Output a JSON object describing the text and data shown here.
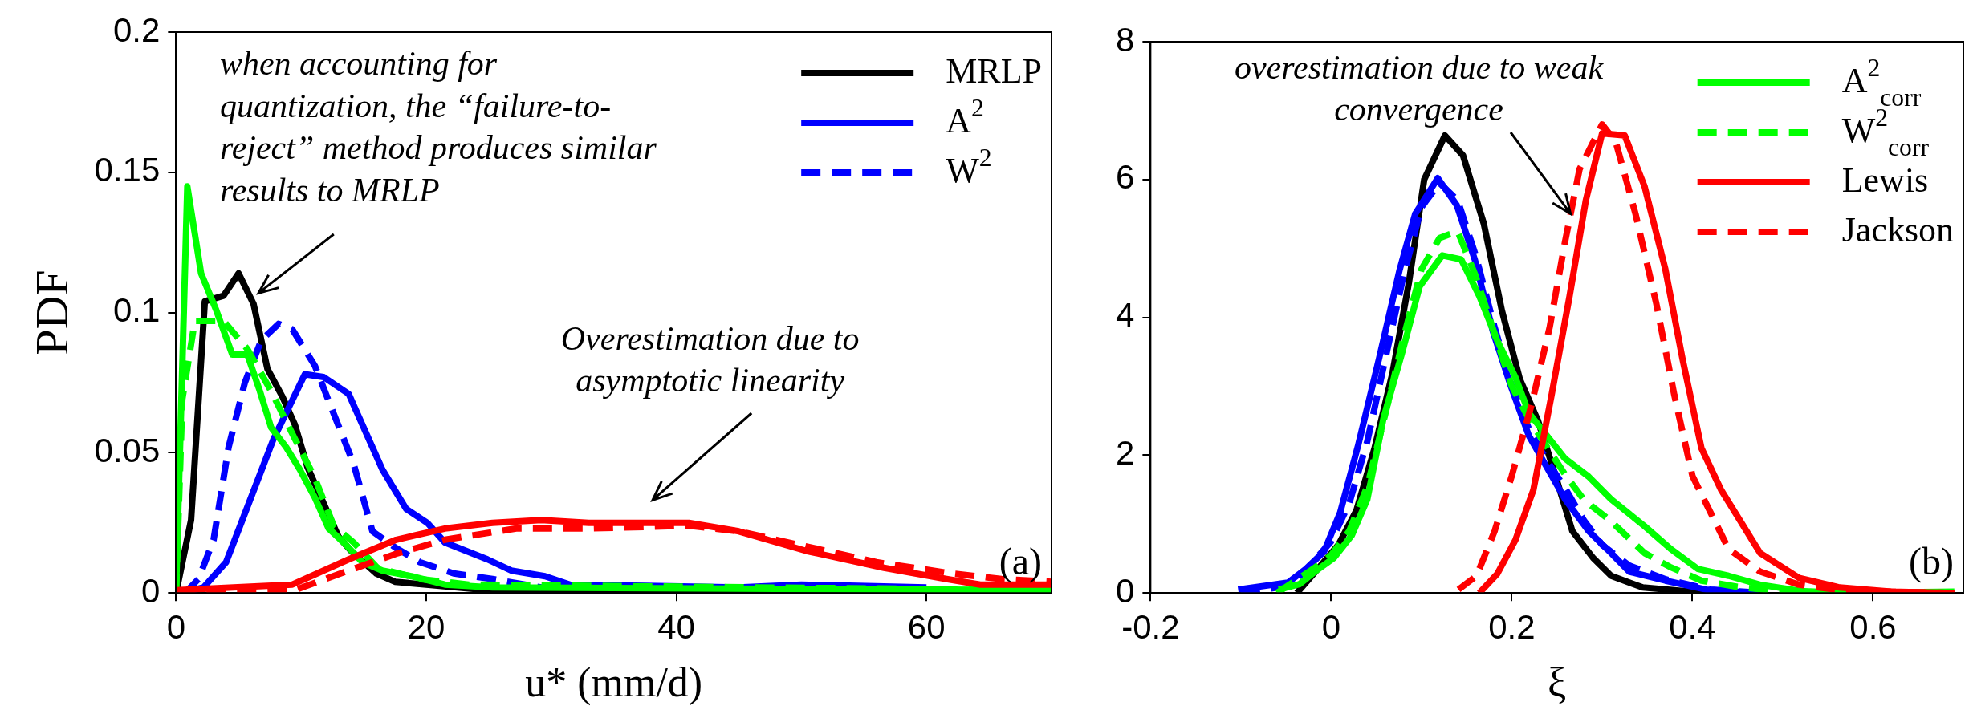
{
  "chart_data": [
    {
      "type": "line",
      "xlabel": "u* (mm/d)",
      "ylabel": "PDF",
      "xlim": [
        0,
        70
      ],
      "ylim": [
        0,
        0.2
      ],
      "xticks": [
        0,
        20,
        40,
        60
      ],
      "yticks": [
        0,
        0.05,
        0.1,
        0.15,
        0.2
      ],
      "grid": false,
      "legend": "top right",
      "series": [
        {
          "name": "MRLP",
          "color": "#000000",
          "line_style": "solid",
          "x": [
            0,
            1.2,
            2.3,
            3.8,
            5,
            6.2,
            7.3,
            8.5,
            9.5,
            10.5,
            12,
            13,
            14,
            16,
            17.5,
            20,
            25,
            30,
            70
          ],
          "values": [
            0,
            0.026,
            0.104,
            0.106,
            0.114,
            0.103,
            0.08,
            0.07,
            0.06,
            0.045,
            0.03,
            0.02,
            0.015,
            0.007,
            0.004,
            0.003,
            0.001,
            0,
            0
          ]
        },
        {
          "name": "A$^{2}$",
          "color": "#0000ff",
          "line_style": "solid",
          "x": [
            0.5,
            2.2,
            4,
            5.3,
            7.8,
            10.3,
            11.8,
            13.8,
            16.5,
            18.4,
            20.1,
            21.5,
            24.9,
            26.8,
            29.5,
            31.5,
            45,
            50,
            60
          ],
          "values": [
            0,
            0.002,
            0.011,
            0.026,
            0.055,
            0.078,
            0.077,
            0.071,
            0.044,
            0.03,
            0.025,
            0.018,
            0.012,
            0.008,
            0.006,
            0.003,
            0.002,
            0.003,
            0.002
          ]
        },
        {
          "name": "W$^{2}$",
          "color": "#0000ff",
          "line_style": "dashed",
          "x": [
            0.7,
            1.8,
            3,
            4.2,
            5.5,
            6.8,
            8.2,
            9.3,
            11.1,
            12.6,
            14.2,
            15.7,
            17.6,
            19.5,
            22.2,
            25.3,
            29.2
          ],
          "values": [
            0,
            0.005,
            0.019,
            0.052,
            0.075,
            0.09,
            0.096,
            0.094,
            0.081,
            0.064,
            0.046,
            0.022,
            0.016,
            0.011,
            0.007,
            0.005,
            0.002
          ]
        },
        {
          "color": "#00ff00",
          "line_style": "solid",
          "x": [
            0,
            0.9,
            2,
            3.2,
            4.5,
            5.7,
            6.7,
            7.6,
            8.8,
            9.9,
            11.1,
            12.2,
            13.4,
            14.9,
            16.5,
            18.8,
            21.5,
            25.3,
            70
          ],
          "values": [
            0.001,
            0.145,
            0.114,
            0.101,
            0.085,
            0.085,
            0.072,
            0.059,
            0.052,
            0.044,
            0.034,
            0.023,
            0.018,
            0.011,
            0.008,
            0.006,
            0.003,
            0.002,
            0.001
          ]
        },
        {
          "color": "#00ff00",
          "line_style": "dashed",
          "x": [
            0,
            0.5,
            1.5,
            3.8,
            5.7,
            7.6,
            9.5,
            11.1,
            12.6,
            14.2,
            16.1,
            19.5,
            23.4,
            70
          ],
          "values": [
            0,
            0.069,
            0.097,
            0.097,
            0.087,
            0.072,
            0.055,
            0.041,
            0.024,
            0.018,
            0.009,
            0.005,
            0.003,
            0.001
          ]
        },
        {
          "color": "#ff0000",
          "line_style": "solid",
          "x": [
            0,
            9.3,
            13.8,
            17.6,
            21.5,
            25.3,
            29.2,
            33,
            41,
            45,
            50.4,
            56.6,
            61.6,
            64.3,
            70
          ],
          "values": [
            0.001,
            0.003,
            0.012,
            0.019,
            0.023,
            0.025,
            0.026,
            0.025,
            0.025,
            0.022,
            0.015,
            0.009,
            0.005,
            0.003,
            0.003
          ]
        },
        {
          "color": "#ff0000",
          "line_style": "dashed",
          "x": [
            0,
            9.5,
            13.8,
            17.6,
            21.5,
            27.2,
            33,
            41,
            45,
            50,
            56,
            62,
            66,
            70
          ],
          "values": [
            0,
            0.001,
            0.008,
            0.014,
            0.019,
            0.023,
            0.023,
            0.024,
            0.022,
            0.017,
            0.011,
            0.007,
            0.005,
            0.004
          ]
        }
      ],
      "annotations": [
        "when accounting for quantization, the “failure-to-reject” method produces similar results to MRLP",
        "Overestimation due to asymptotic linearity",
        "(a)"
      ]
    },
    {
      "type": "line",
      "xlabel": "ξ",
      "xlim": [
        -0.2,
        0.7
      ],
      "ylim": [
        0,
        8
      ],
      "xticks": [
        -0.2,
        0,
        0.2,
        0.4,
        0.6
      ],
      "yticks": [
        0,
        2,
        4,
        6,
        8
      ],
      "grid": false,
      "legend": "top right",
      "series": [
        {
          "color": "#000000",
          "line_style": "solid",
          "x": [
            -0.038,
            -0.018,
            0.008,
            0.028,
            0.048,
            0.068,
            0.086,
            0.103,
            0.126,
            0.146,
            0.169,
            0.189,
            0.209,
            0.229,
            0.247,
            0.267,
            0.29,
            0.31,
            0.345,
            0.39,
            0.44
          ],
          "values": [
            0,
            0.3,
            0.7,
            1.2,
            2.1,
            3.2,
            4.5,
            6,
            6.64,
            6.35,
            5.36,
            4.1,
            3.1,
            2.5,
            1.76,
            0.9,
            0.51,
            0.25,
            0.08,
            0.03,
            0
          ]
        },
        {
          "color": "#0000ff",
          "line_style": "solid",
          "x": [
            -0.103,
            -0.048,
            -0.028,
            -0.008,
            0.01,
            0.03,
            0.053,
            0.076,
            0.093,
            0.118,
            0.139,
            0.159,
            0.179,
            0.199,
            0.219,
            0.239,
            0.259,
            0.285,
            0.31,
            0.33,
            0.37,
            0.415,
            0.47
          ],
          "values": [
            0.05,
            0.15,
            0.35,
            0.6,
            1.17,
            2.15,
            3.4,
            4.7,
            5.5,
            6.02,
            5.63,
            4.84,
            3.8,
            3,
            2.28,
            1.82,
            1.36,
            0.9,
            0.58,
            0.31,
            0.18,
            0.05,
            0
          ]
        },
        {
          "color": "#0000ff",
          "line_style": "dashed",
          "x": [
            -0.1,
            -0.05,
            -0.03,
            0,
            0.02,
            0.04,
            0.06,
            0.08,
            0.1,
            0.12,
            0.14,
            0.16,
            0.18,
            0.2,
            0.22,
            0.24,
            0.26,
            0.28,
            0.3,
            0.33,
            0.37,
            0.42,
            0.48
          ],
          "values": [
            0,
            0.1,
            0.3,
            0.75,
            1.3,
            2.2,
            3.4,
            4.6,
            5.6,
            5.95,
            5.7,
            4.9,
            3.9,
            3,
            2.35,
            1.9,
            1.5,
            1.05,
            0.7,
            0.4,
            0.2,
            0.05,
            0
          ]
        },
        {
          "name": "A$^{2}$$_{corr}$",
          "color": "#00ff00",
          "line_style": "solid",
          "x": [
            -0.058,
            -0.035,
            -0.018,
            0.003,
            0.023,
            0.04,
            0.058,
            0.078,
            0.098,
            0.123,
            0.144,
            0.164,
            0.184,
            0.204,
            0.219,
            0.239,
            0.259,
            0.285,
            0.31,
            0.347,
            0.376,
            0.406,
            0.44,
            0.475,
            0.52,
            0.565,
            0.69
          ],
          "values": [
            0.05,
            0.13,
            0.31,
            0.51,
            0.84,
            1.36,
            2.54,
            3.46,
            4.45,
            4.9,
            4.84,
            4.31,
            3.66,
            3.13,
            2.61,
            2.28,
            1.95,
            1.69,
            1.36,
            0.97,
            0.64,
            0.35,
            0.25,
            0.12,
            0.03,
            0,
            0.02
          ]
        },
        {
          "name": "W$^{2}$$_{corr}$",
          "color": "#00ff00",
          "line_style": "dashed",
          "x": [
            -0.06,
            -0.02,
            0,
            0.02,
            0.04,
            0.06,
            0.08,
            0.1,
            0.12,
            0.14,
            0.16,
            0.18,
            0.2,
            0.22,
            0.24,
            0.26,
            0.28,
            0.31,
            0.347,
            0.375,
            0.41,
            0.45,
            0.5,
            0.69
          ],
          "values": [
            0,
            0.35,
            0.55,
            0.9,
            1.55,
            2.6,
            3.7,
            4.7,
            5.15,
            5.25,
            4.6,
            3.8,
            3,
            2.5,
            2.1,
            1.7,
            1.35,
            1.04,
            0.58,
            0.38,
            0.18,
            0.09,
            0.02,
            0
          ]
        },
        {
          "name": "Lewis",
          "color": "#ff0000",
          "line_style": "solid",
          "x": [
            0.164,
            0.184,
            0.204,
            0.224,
            0.244,
            0.264,
            0.282,
            0.3,
            0.325,
            0.347,
            0.37,
            0.389,
            0.41,
            0.432,
            0.475,
            0.518,
            0.563,
            0.62,
            0.69
          ],
          "values": [
            0,
            0.28,
            0.77,
            1.5,
            2.87,
            4.31,
            5.7,
            6.67,
            6.64,
            5.9,
            4.7,
            3.4,
            2.1,
            1.49,
            0.58,
            0.22,
            0.08,
            0.02,
            0
          ]
        },
        {
          "name": "Jackson",
          "color": "#ff0000",
          "line_style": "dashed",
          "x": [
            0.141,
            0.161,
            0.181,
            0.2,
            0.222,
            0.242,
            0.259,
            0.275,
            0.3,
            0.315,
            0.337,
            0.36,
            0.38,
            0.4,
            0.44,
            0.475,
            0.518,
            0.57,
            0.69
          ],
          "values": [
            0.05,
            0.25,
            0.9,
            1.7,
            2.74,
            3.86,
            5.1,
            6.15,
            6.8,
            6.55,
            5.5,
            4.2,
            2.87,
            1.7,
            0.64,
            0.31,
            0.12,
            0.03,
            0
          ]
        }
      ],
      "annotations": [
        {
          "text": "overestimation due to weak convergence",
          "x": 0.265,
          "y": 5.5
        },
        "(b)"
      ]
    }
  ]
}
